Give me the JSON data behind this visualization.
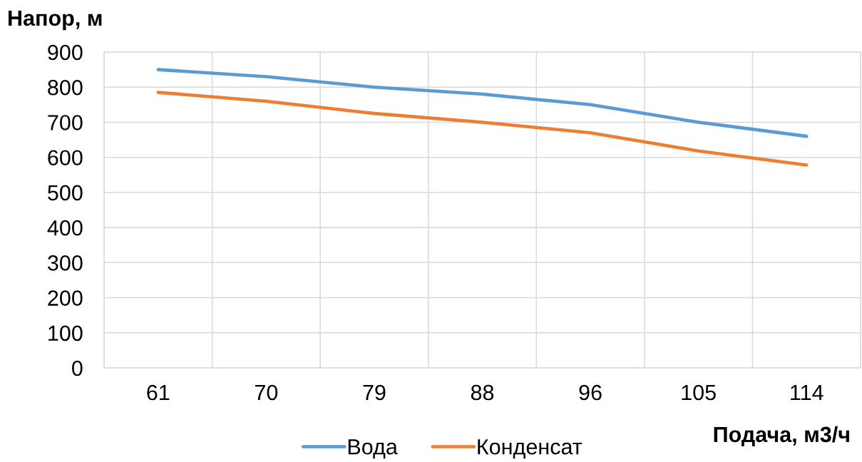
{
  "chart_data": {
    "type": "line",
    "xlabel": "Подача, м3/ч",
    "ylabel": "Напор, м",
    "categories": [
      "61",
      "70",
      "79",
      "88",
      "96",
      "105",
      "114"
    ],
    "series": [
      {
        "name": "Вода",
        "color": "#5b9bd5",
        "values": [
          850,
          830,
          800,
          780,
          750,
          700,
          660
        ]
      },
      {
        "name": "Конденсат",
        "color": "#ed7d31",
        "values": [
          785,
          760,
          725,
          700,
          670,
          618,
          578
        ]
      }
    ],
    "ylim": [
      0,
      900
    ],
    "yticks": [
      0,
      100,
      200,
      300,
      400,
      500,
      600,
      700,
      800,
      900
    ],
    "grid": true,
    "legend": "bottom",
    "line_style": "solid"
  }
}
